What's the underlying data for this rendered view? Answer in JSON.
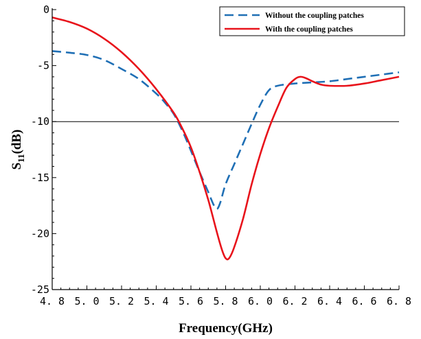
{
  "chart_data": {
    "type": "line",
    "xlabel": "Frequency(GHz)",
    "ylabel_main": "S",
    "ylabel_sub": "11",
    "ylabel_unit": "(dB)",
    "xlim": [
      4.8,
      6.8
    ],
    "ylim": [
      -25,
      0
    ],
    "xticks": [
      4.8,
      5.0,
      5.2,
      5.4,
      5.6,
      5.8,
      6.0,
      6.2,
      6.4,
      6.6,
      6.8
    ],
    "xtick_labels": [
      "4. 8",
      "5. 0",
      "5. 2",
      "5. 4",
      "5. 6",
      "5. 8",
      "6. 0",
      "6. 2",
      "6. 4",
      "6. 6",
      "6. 8"
    ],
    "yticks": [
      0,
      -5,
      -10,
      -15,
      -20,
      -25
    ],
    "ytick_labels": [
      "0",
      "-5",
      "-10",
      "-15",
      "-20",
      "-25"
    ],
    "reference_line": -10,
    "grid": false,
    "legend_position": "top-right",
    "series": [
      {
        "name": "Without the coupling patches",
        "color": "#1f6fb5",
        "dash": "dashed",
        "x": [
          4.8,
          4.9,
          5.0,
          5.1,
          5.2,
          5.3,
          5.4,
          5.45,
          5.5,
          5.55,
          5.6,
          5.65,
          5.7,
          5.73,
          5.75,
          5.77,
          5.8,
          5.85,
          5.9,
          5.95,
          6.0,
          6.05,
          6.1,
          6.2,
          6.3,
          6.4,
          6.5,
          6.6,
          6.7,
          6.8
        ],
        "y": [
          -3.7,
          -3.85,
          -4.05,
          -4.5,
          -5.3,
          -6.2,
          -7.5,
          -8.3,
          -9.3,
          -10.8,
          -12.6,
          -14.5,
          -16.3,
          -17.4,
          -17.8,
          -17.2,
          -15.6,
          -13.8,
          -12.0,
          -10.2,
          -8.5,
          -7.2,
          -6.8,
          -6.6,
          -6.5,
          -6.4,
          -6.2,
          -6.0,
          -5.8,
          -5.6
        ]
      },
      {
        "name": "With the coupling patches",
        "color": "#e8131b",
        "dash": "solid",
        "x": [
          4.8,
          4.9,
          5.0,
          5.1,
          5.2,
          5.3,
          5.4,
          5.5,
          5.55,
          5.6,
          5.65,
          5.7,
          5.75,
          5.78,
          5.8,
          5.82,
          5.85,
          5.9,
          5.95,
          6.0,
          6.05,
          6.1,
          6.15,
          6.2,
          6.23,
          6.26,
          6.3,
          6.35,
          6.4,
          6.5,
          6.6,
          6.7,
          6.8
        ],
        "y": [
          -0.7,
          -1.1,
          -1.7,
          -2.6,
          -3.8,
          -5.3,
          -7.1,
          -9.2,
          -10.6,
          -12.3,
          -14.5,
          -17.0,
          -19.9,
          -21.5,
          -22.2,
          -22.2,
          -21.2,
          -18.7,
          -15.6,
          -12.9,
          -10.6,
          -8.7,
          -7.0,
          -6.2,
          -6.0,
          -6.1,
          -6.4,
          -6.7,
          -6.8,
          -6.8,
          -6.6,
          -6.3,
          -6.0
        ]
      }
    ]
  }
}
